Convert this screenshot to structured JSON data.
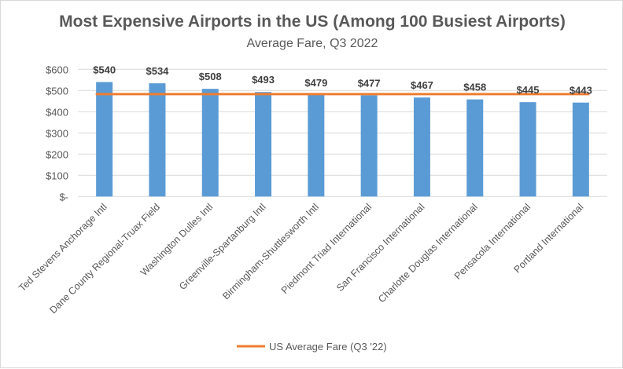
{
  "chart_data": {
    "type": "bar",
    "title": "Most Expensive Airports in the US (Among 100 Busiest Airports)",
    "subtitle": "Average Fare, Q3 2022",
    "categories": [
      "Ted Stevens Anchorage Intl",
      "Dane County Regional-Truax Field",
      "Washington Dulles Intl",
      "Greenville-Spartanburg Intl",
      "Birmingham-Shuttlesworth Intl",
      "Piedmont Triad International",
      "San Francisco International",
      "Charlotte Douglas International",
      "Pensacola International",
      "Portland International"
    ],
    "values": [
      540,
      534,
      508,
      493,
      479,
      477,
      467,
      458,
      445,
      443
    ],
    "data_labels": [
      "$540",
      "$534",
      "$508",
      "$493",
      "$479",
      "$477",
      "$467",
      "$458",
      "$445",
      "$443"
    ],
    "reference_line": {
      "name": "US Average Fare (Q3 '22)",
      "value": 483
    },
    "yticks": [
      0,
      100,
      200,
      300,
      400,
      500,
      600
    ],
    "ytick_labels": [
      "$-",
      "$100",
      "$200",
      "$300",
      "$400",
      "$500",
      "$600"
    ],
    "ylim": [
      0,
      600
    ],
    "grid": true,
    "legend": "bottom",
    "colors": {
      "bar": "#5B9BD5",
      "line": "#ED7D31"
    }
  }
}
